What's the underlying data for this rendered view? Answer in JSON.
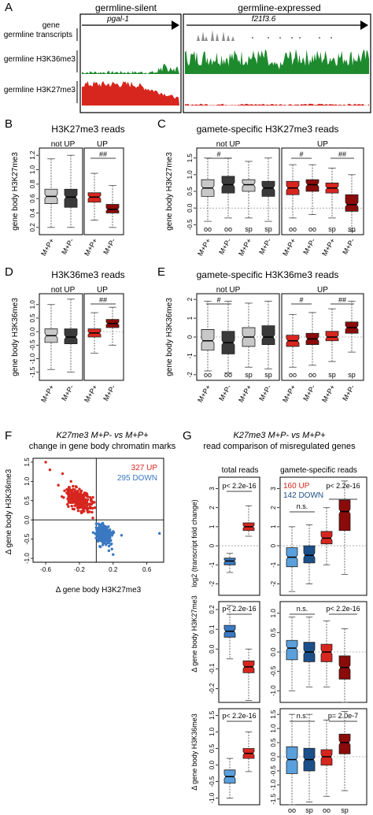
{
  "colors": {
    "green": "#1e8a2e",
    "red": "#d7261e",
    "dark_red": "#8b0a0a",
    "light_gray": "#c8c8c8",
    "dark_gray": "#3a3a3a",
    "blue": "#3a78c2",
    "light_blue": "#5aa0dc",
    "dark_blue": "#1b4f8a"
  },
  "panel_a": {
    "letter": "A",
    "silent_title": "germline-silent",
    "expressed_title": "germline-expressed",
    "track_gene": "gene",
    "track_transcripts": "germline transcripts",
    "track_h3k36": "germline H3K36me3",
    "track_h3k27": "germline H3K27me3",
    "gene_left": "pgal-1",
    "gene_right": "f21f3.6"
  },
  "panel_b": {
    "letter": "B",
    "title": "H3K27me3 reads",
    "ylabel": "gene body H3K27me3",
    "group_not_up": "not UP",
    "group_up": "UP",
    "sig": "##",
    "ticks": [
      "0.2",
      "0.4",
      "0.6",
      "0.8",
      "1.0",
      "1.2"
    ],
    "xlabels": [
      "M+P+",
      "M+P-",
      "M+P+",
      "M+P-"
    ]
  },
  "panel_c": {
    "letter": "C",
    "title": "gamete-specific H3K27me3 reads",
    "ylabel": "gene body H3K27me3",
    "group_not_up": "not UP",
    "group_up": "UP",
    "sig1": "#",
    "sig2": "#",
    "sig3": "##",
    "ticks": [
      "-0.5",
      "0.0",
      "0.5",
      "1.0",
      "1.5"
    ],
    "sub": [
      "oo",
      "oo",
      "sp",
      "sp",
      "oo",
      "oo",
      "sp",
      "sp"
    ],
    "xlabels": [
      "M+P+",
      "M+P-",
      "M+P+",
      "M+P-",
      "M+P+",
      "M+P-",
      "M+P+",
      "M+P-"
    ]
  },
  "panel_d": {
    "letter": "D",
    "title": "H3K36me3 reads",
    "ylabel": "gene body H3K36me3",
    "group_not_up": "not UP",
    "group_up": "UP",
    "sig": "##",
    "ticks": [
      "-1.5",
      "-1.0",
      "-0.5",
      "0.0",
      "0.5",
      "1.0"
    ],
    "xlabels": [
      "M+P+",
      "M+P-",
      "M+P+",
      "M+P-"
    ]
  },
  "panel_e": {
    "letter": "E",
    "title": "gamete-specific H3K36me3 reads",
    "ylabel": "gene body H3K36me3",
    "group_not_up": "not UP",
    "group_up": "UP",
    "sig1": "#",
    "sig2": "#",
    "sig3": "##",
    "ticks": [
      "-2",
      "-1",
      "0",
      "1",
      "2"
    ],
    "sub": [
      "oo",
      "oo",
      "sp",
      "sp",
      "oo",
      "oo",
      "sp",
      "sp"
    ],
    "xlabels": [
      "M+P+",
      "M+P-",
      "M+P+",
      "M+P-",
      "M+P+",
      "M+P-",
      "M+P+",
      "M+P-"
    ]
  },
  "panel_f": {
    "letter": "F",
    "title1": "K27me3 M+P- vs M+P+",
    "title2": "change in gene body chromatin marks",
    "legend_up": "327 UP",
    "legend_down": "295 DOWN",
    "ylabel": "Δ gene body H3K36me3",
    "xlabel": "Δ gene body H3K27me3",
    "yticks": [
      "-1.0",
      "-0.5",
      "0.0",
      "0.5",
      "1.0",
      "1.5"
    ],
    "xticks": [
      "-0.6",
      "-0.2",
      "0.2",
      "0.6"
    ]
  },
  "panel_g": {
    "letter": "G",
    "title1": "K27me3 M+P- vs M+P+",
    "title2": "read comparison of misregulated genes",
    "col_total": "total reads",
    "col_gamete": "gamete-specific reads",
    "legend_up": "160 UP",
    "legend_down": "142 DOWN",
    "p_total": "p< 2.2e-16",
    "ns": "n.s.",
    "p_r1": "p< 2.2e-16",
    "p_r2": "p< 2.2e-16",
    "p_r3": "p= 2.0e-7",
    "ylabel_r1": "log2 (transcript fold change)",
    "ylabel_r2": "Δ gene body H3K27me3",
    "ylabel_r3": "Δ gene body H3K36me3",
    "r1_ticks": [
      "-2",
      "-1",
      "0",
      "1",
      "2",
      "3"
    ],
    "r2_ticks": [
      "-0.2",
      "-0.1",
      "0.0",
      "0.1",
      "0.2"
    ],
    "r3_ticks_left": [
      "-1.0",
      "-0.5",
      "0.0",
      "0.5",
      "1.0",
      "1.5"
    ],
    "r3_ticks_right": [
      "-1.5",
      "-1.0",
      "-0.5",
      "0.0",
      "0.5",
      "1.0",
      "1.5"
    ],
    "bottom_labels": [
      "oo",
      "sp",
      "oo",
      "sp"
    ]
  },
  "chart_data": [
    {
      "type": "box",
      "title": "H3K27me3 reads",
      "ylabel": "gene body H3K27me3",
      "categories": [
        "M+P+",
        "M+P-",
        "M+P+",
        "M+P-"
      ],
      "groups": [
        "not UP",
        "not UP",
        "UP",
        "UP"
      ],
      "medians": [
        0.63,
        0.62,
        0.62,
        0.45
      ],
      "ylim": [
        0.1,
        1.3
      ]
    },
    {
      "type": "box",
      "title": "gamete-specific H3K27me3 reads",
      "ylabel": "gene body H3K27me3",
      "categories": [
        "M+P+ oo",
        "M+P- oo",
        "M+P+ sp",
        "M+P- sp",
        "M+P+ oo",
        "M+P- oo",
        "M+P+ sp",
        "M+P- sp"
      ],
      "medians": [
        0.6,
        0.7,
        0.7,
        0.6,
        0.6,
        0.7,
        0.6,
        0.1
      ],
      "ylim": [
        -0.8,
        1.8
      ]
    },
    {
      "type": "box",
      "title": "H3K36me3 reads",
      "ylabel": "gene body H3K36me3",
      "categories": [
        "M+P+",
        "M+P-",
        "M+P+",
        "M+P-"
      ],
      "groups": [
        "not UP",
        "not UP",
        "UP",
        "UP"
      ],
      "medians": [
        -0.15,
        -0.2,
        -0.05,
        0.3
      ],
      "ylim": [
        -1.8,
        1.4
      ]
    },
    {
      "type": "box",
      "title": "gamete-specific H3K36me3 reads",
      "ylabel": "gene body H3K36me3",
      "categories": [
        "M+P+ oo",
        "M+P- oo",
        "M+P+ sp",
        "M+P- sp",
        "M+P+ oo",
        "M+P- oo",
        "M+P+ sp",
        "M+P- sp"
      ],
      "medians": [
        -0.2,
        -0.3,
        0.0,
        0.0,
        -0.2,
        -0.1,
        0.0,
        0.5
      ],
      "ylim": [
        -2.3,
        2.3
      ]
    },
    {
      "type": "scatter",
      "title": "K27me3 M+P- vs M+P+",
      "xlabel": "Δ gene body H3K27me3",
      "ylabel": "Δ gene body H3K36me3",
      "xlim": [
        -0.75,
        0.8
      ],
      "ylim": [
        -1.1,
        1.6
      ],
      "series": [
        {
          "name": "327 UP",
          "x": [
            -0.45,
            -0.35,
            -0.3,
            -0.25,
            -0.2,
            -0.15,
            -0.1,
            -0.05,
            -0.4,
            -0.3,
            -0.2,
            -0.1,
            -0.55,
            -0.6
          ],
          "y": [
            0.9,
            0.7,
            0.6,
            0.5,
            0.4,
            0.45,
            0.3,
            0.2,
            1.2,
            1.0,
            0.8,
            0.6,
            1.3,
            1.5
          ]
        },
        {
          "name": "295 DOWN",
          "x": [
            0.0,
            0.05,
            0.1,
            0.15,
            0.2,
            0.1,
            0.05,
            0.0,
            0.15,
            0.2,
            0.3,
            0.75
          ],
          "y": [
            -0.2,
            -0.3,
            -0.4,
            -0.5,
            -0.3,
            -0.6,
            -0.7,
            -0.1,
            -0.8,
            -0.9,
            -0.4,
            -0.35
          ]
        }
      ]
    }
  ]
}
